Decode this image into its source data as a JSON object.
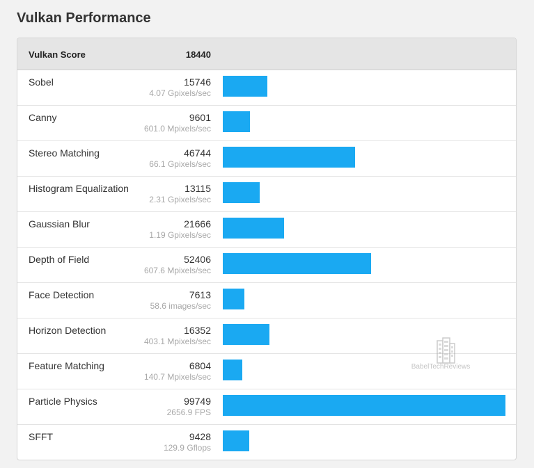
{
  "title": "Vulkan Performance",
  "watermark": "BabelTechReviews",
  "colors": {
    "bar": "#1aa9f2",
    "header_bg": "#e5e5e5"
  },
  "score": {
    "label": "Vulkan Score",
    "value": "18440"
  },
  "rows": [
    {
      "name": "Sobel",
      "score": "15746",
      "sub": "4.07 Gpixels/sec"
    },
    {
      "name": "Canny",
      "score": "9601",
      "sub": "601.0 Mpixels/sec"
    },
    {
      "name": "Stereo Matching",
      "score": "46744",
      "sub": "66.1 Gpixels/sec"
    },
    {
      "name": "Histogram Equalization",
      "score": "13115",
      "sub": "2.31 Gpixels/sec"
    },
    {
      "name": "Gaussian Blur",
      "score": "21666",
      "sub": "1.19 Gpixels/sec"
    },
    {
      "name": "Depth of Field",
      "score": "52406",
      "sub": "607.6 Mpixels/sec"
    },
    {
      "name": "Face Detection",
      "score": "7613",
      "sub": "58.6 images/sec"
    },
    {
      "name": "Horizon Detection",
      "score": "16352",
      "sub": "403.1 Mpixels/sec"
    },
    {
      "name": "Feature Matching",
      "score": "6804",
      "sub": "140.7 Mpixels/sec"
    },
    {
      "name": "Particle Physics",
      "score": "99749",
      "sub": "2656.9 FPS"
    },
    {
      "name": "SFFT",
      "score": "9428",
      "sub": "129.9 Gflops"
    }
  ],
  "chart_data": {
    "type": "bar",
    "orientation": "horizontal",
    "title": "Vulkan Performance",
    "categories": [
      "Sobel",
      "Canny",
      "Stereo Matching",
      "Histogram Equalization",
      "Gaussian Blur",
      "Depth of Field",
      "Face Detection",
      "Horizon Detection",
      "Feature Matching",
      "Particle Physics",
      "SFFT"
    ],
    "values": [
      15746,
      9601,
      46744,
      13115,
      21666,
      52406,
      7613,
      16352,
      6804,
      99749,
      9428
    ],
    "max": 99749,
    "grid": false,
    "legend": "none"
  }
}
